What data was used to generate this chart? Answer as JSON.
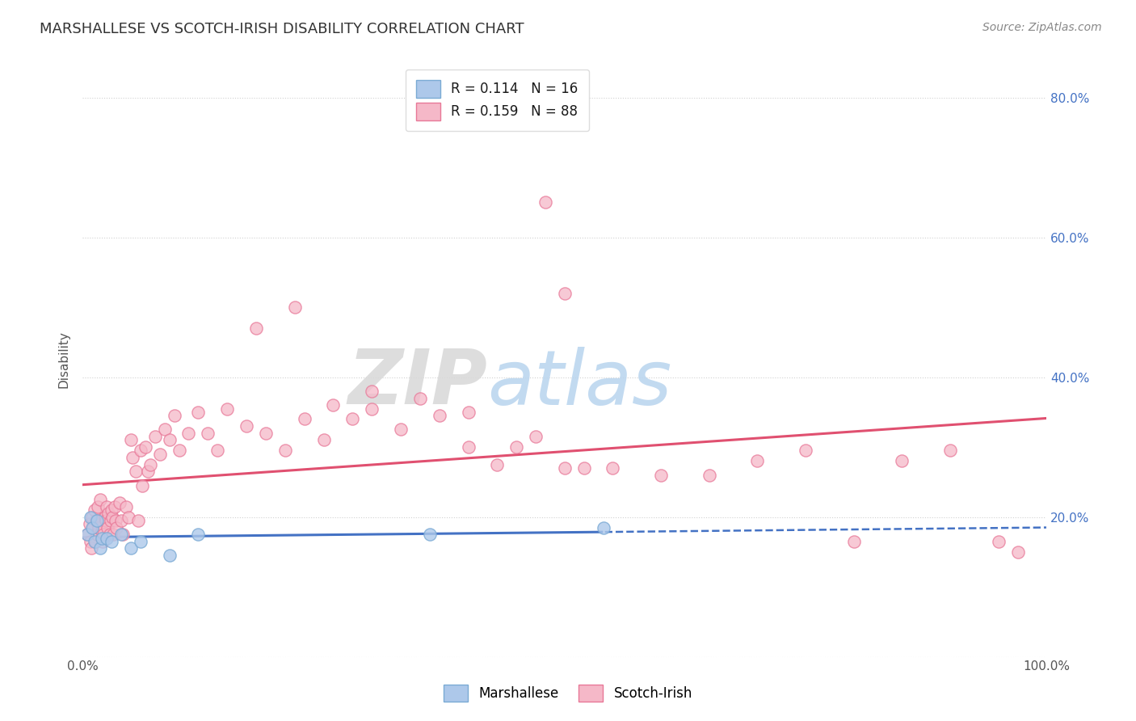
{
  "title": "MARSHALLESE VS SCOTCH-IRISH DISABILITY CORRELATION CHART",
  "source": "Source: ZipAtlas.com",
  "ylabel": "Disability",
  "color_marshallese_face": "#adc8ea",
  "color_marshallese_edge": "#7aaad4",
  "color_scotch_face": "#f5b8c8",
  "color_scotch_edge": "#e87898",
  "line_color_marshallese": "#4472c4",
  "line_color_scotch": "#e05070",
  "background_color": "#ffffff",
  "grid_color": "#cccccc",
  "xlim": [
    0,
    1.0
  ],
  "ylim": [
    0,
    0.85
  ],
  "marshallese_x": [
    0.005,
    0.008,
    0.01,
    0.012,
    0.015,
    0.018,
    0.02,
    0.025,
    0.03,
    0.04,
    0.05,
    0.06,
    0.09,
    0.12,
    0.36,
    0.54
  ],
  "marshallese_y": [
    0.175,
    0.2,
    0.185,
    0.165,
    0.195,
    0.155,
    0.17,
    0.17,
    0.165,
    0.175,
    0.155,
    0.165,
    0.145,
    0.175,
    0.175,
    0.185
  ],
  "scotch_x": [
    0.005,
    0.007,
    0.008,
    0.009,
    0.01,
    0.011,
    0.012,
    0.013,
    0.014,
    0.015,
    0.016,
    0.017,
    0.018,
    0.019,
    0.02,
    0.021,
    0.022,
    0.023,
    0.024,
    0.025,
    0.026,
    0.027,
    0.028,
    0.029,
    0.03,
    0.031,
    0.032,
    0.033,
    0.034,
    0.035,
    0.038,
    0.04,
    0.042,
    0.045,
    0.048,
    0.05,
    0.052,
    0.055,
    0.058,
    0.06,
    0.062,
    0.065,
    0.068,
    0.07,
    0.075,
    0.08,
    0.085,
    0.09,
    0.095,
    0.1,
    0.11,
    0.12,
    0.13,
    0.14,
    0.15,
    0.17,
    0.19,
    0.21,
    0.23,
    0.25,
    0.28,
    0.3,
    0.33,
    0.37,
    0.4,
    0.43,
    0.45,
    0.47,
    0.5,
    0.52,
    0.55,
    0.6,
    0.65,
    0.7,
    0.75,
    0.8,
    0.85,
    0.9,
    0.95,
    0.97,
    0.48,
    0.5,
    0.18,
    0.22,
    0.26,
    0.3,
    0.35,
    0.4
  ],
  "scotch_y": [
    0.175,
    0.19,
    0.165,
    0.155,
    0.2,
    0.185,
    0.21,
    0.165,
    0.195,
    0.175,
    0.215,
    0.185,
    0.225,
    0.195,
    0.18,
    0.165,
    0.175,
    0.2,
    0.195,
    0.215,
    0.185,
    0.205,
    0.175,
    0.195,
    0.21,
    0.2,
    0.175,
    0.215,
    0.195,
    0.185,
    0.22,
    0.195,
    0.175,
    0.215,
    0.2,
    0.31,
    0.285,
    0.265,
    0.195,
    0.295,
    0.245,
    0.3,
    0.265,
    0.275,
    0.315,
    0.29,
    0.325,
    0.31,
    0.345,
    0.295,
    0.32,
    0.35,
    0.32,
    0.295,
    0.355,
    0.33,
    0.32,
    0.295,
    0.34,
    0.31,
    0.34,
    0.355,
    0.325,
    0.345,
    0.3,
    0.275,
    0.3,
    0.315,
    0.27,
    0.27,
    0.27,
    0.26,
    0.26,
    0.28,
    0.295,
    0.165,
    0.28,
    0.295,
    0.165,
    0.15,
    0.65,
    0.52,
    0.47,
    0.5,
    0.36,
    0.38,
    0.37,
    0.35
  ]
}
